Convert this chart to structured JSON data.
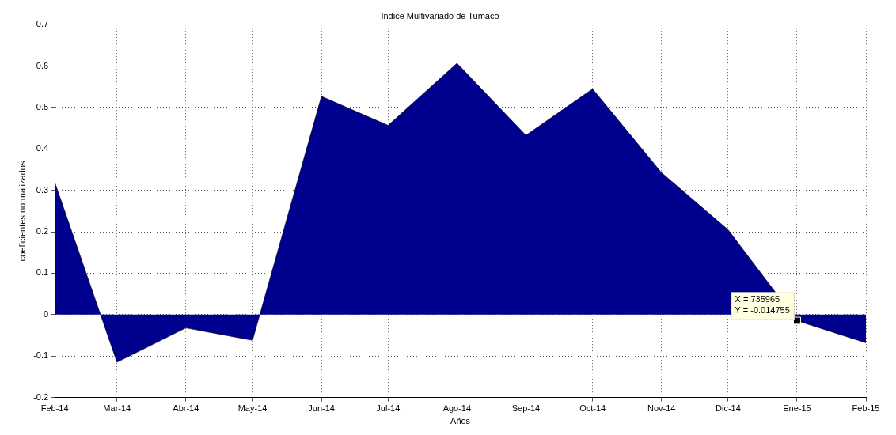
{
  "chart_data": {
    "type": "area",
    "title": "Indice Multivariado de Tumaco",
    "xlabel": "Años",
    "ylabel": "coeficientes normalizados",
    "x": [
      "2014-02",
      "2014-03",
      "2014-04",
      "2014-05",
      "2014-06",
      "2014-07",
      "2014-08",
      "2014-09",
      "2014-10",
      "2014-11",
      "2014-12",
      "2015-01",
      "2015-02"
    ],
    "series": [
      {
        "color": "#00008f",
        "values": [
          0.32,
          -0.115,
          -0.032,
          -0.062,
          0.527,
          0.457,
          0.607,
          0.433,
          0.545,
          0.343,
          0.205,
          -0.014755,
          -0.068
        ]
      }
    ],
    "xlim": [
      "2014-02",
      "2015-02"
    ],
    "xticks": [
      {
        "value": "2014-02",
        "label": "Feb-14"
      },
      {
        "value": "2014-03",
        "label": "Mar-14"
      },
      {
        "value": "2014-04",
        "label": "Abr-14"
      },
      {
        "value": "2014-05",
        "label": "May-14"
      },
      {
        "value": "2014-06",
        "label": "Jun-14"
      },
      {
        "value": "2014-07",
        "label": "Jul-14"
      },
      {
        "value": "2014-08",
        "label": "Ago-14"
      },
      {
        "value": "2014-09",
        "label": "Sep-14"
      },
      {
        "value": "2014-10",
        "label": "Oct-14"
      },
      {
        "value": "2014-11",
        "label": "Nov-14"
      },
      {
        "value": "2014-12",
        "label": "Dic-14"
      },
      {
        "value": "2015-01",
        "label": "Ene-15"
      },
      {
        "value": "2015-02",
        "label": "Feb-15"
      }
    ],
    "ylim": [
      -0.2,
      0.7
    ],
    "yticks": [
      -0.2,
      -0.1,
      0,
      0.1,
      0.2,
      0.3,
      0.4,
      0.5,
      0.6,
      0.7
    ],
    "grid": true,
    "legend": false,
    "annotations": [
      {
        "text": "X = 735965\nY = -0.014755",
        "x": "2015-01",
        "y": -0.014755
      }
    ]
  }
}
